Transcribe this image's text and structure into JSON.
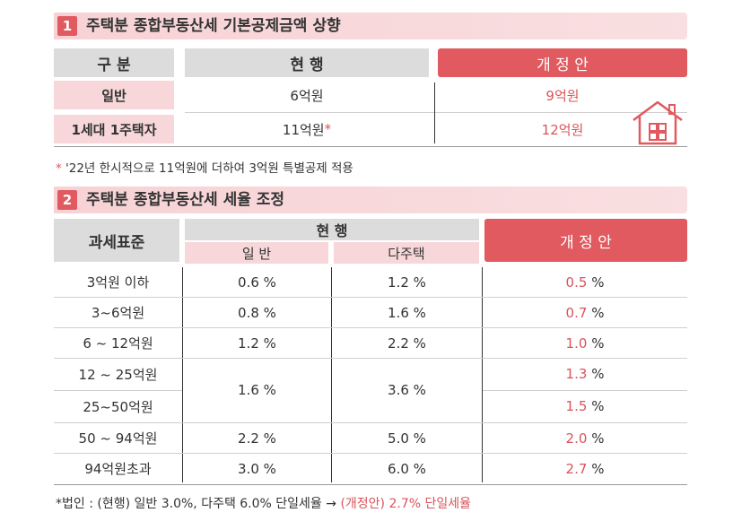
{
  "section1": {
    "number": "1",
    "title": "주택분 종합부동산세 기본공제금액 상향",
    "headers": {
      "category": "구 분",
      "current": "현 행",
      "proposed": "개 정 안"
    },
    "rows": [
      {
        "label": "일반",
        "current": "6억원",
        "current_mark": "",
        "proposed": "9억원"
      },
      {
        "label": "1세대 1주택자",
        "current": "11억원",
        "current_mark": "*",
        "proposed": "12억원"
      }
    ],
    "footnote_mark": "*",
    "footnote": "'22년 한시적으로 11억원에 더하여 3억원 특별공제 적용",
    "house_icon": "house-icon"
  },
  "section2": {
    "number": "2",
    "title": "주택분 종합부동산세 세율 조정",
    "headers": {
      "base": "과세표준",
      "current": "현 행",
      "general": "일 반",
      "multi": "다주택",
      "proposed": "개 정 안"
    },
    "rows": [
      {
        "base": "3억원 이하",
        "general": "0.6 %",
        "multi": "1.2 %",
        "proposed_num": "0.5",
        "proposed_unit": "%"
      },
      {
        "base": "3~6억원",
        "general": "0.8 %",
        "multi": "1.6 %",
        "proposed_num": "0.7",
        "proposed_unit": "%"
      },
      {
        "base": "6 ~ 12억원",
        "general": "1.2 %",
        "multi": "2.2 %",
        "proposed_num": "1.0",
        "proposed_unit": "%"
      },
      {
        "base": "12 ~ 25억원",
        "general": "",
        "multi": "",
        "proposed_num": "1.3",
        "proposed_unit": "%"
      },
      {
        "base": "25~50억원",
        "general": "",
        "multi": "",
        "proposed_num": "1.5",
        "proposed_unit": "%"
      },
      {
        "base": "50 ~ 94억원",
        "general": "2.2 %",
        "multi": "5.0 %",
        "proposed_num": "2.0",
        "proposed_unit": "%"
      },
      {
        "base": "94억원초과",
        "general": "3.0 %",
        "multi": "6.0 %",
        "proposed_num": "2.7",
        "proposed_unit": "%"
      }
    ],
    "merged_general": "1.6 %",
    "merged_multi": "3.6 %",
    "footnote_main": "*법인 : (현행) 일반 3.0%, 다주택 6.0% 단일세율 →",
    "footnote_red": "(개정안) 2.7% 단일세율"
  },
  "colors": {
    "accent": "#e05a5f",
    "pink": "#f7d7d9",
    "gray": "#dcdcdc"
  }
}
